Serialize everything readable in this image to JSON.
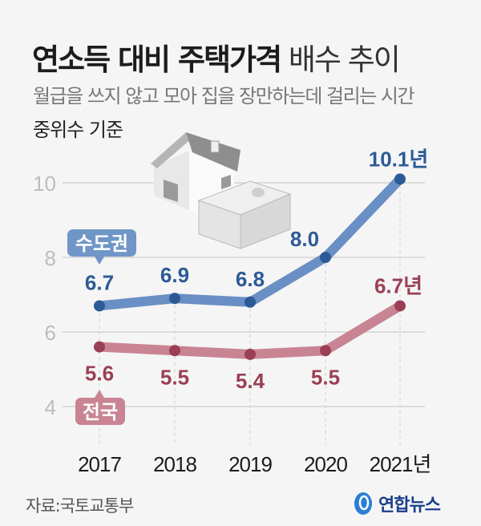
{
  "header": {
    "title_bold": "연소득 대비 주택가격",
    "title_light": "배수 추이",
    "subtitle": "월급을 쓰지 않고 모아 집을 장만하는데 걸리는 시간",
    "basis": "중위수 기준"
  },
  "footer": {
    "source": "자료:국토교통부",
    "logo_text": "연합뉴스"
  },
  "colors": {
    "capital": "#6a8fc4",
    "capital_dark": "#2c5a96",
    "national": "#c98494",
    "national_dark": "#9a3f55"
  },
  "chart_data": {
    "type": "line",
    "title": "연소득 대비 주택가격 배수 추이",
    "categories": [
      "2017",
      "2018",
      "2019",
      "2020",
      "2021년"
    ],
    "ylim": [
      4,
      10
    ],
    "yticks": [
      "4",
      "6",
      "8",
      "10"
    ],
    "grid": true,
    "series": [
      {
        "name": "수도권",
        "values": [
          6.7,
          6.9,
          6.8,
          8.0,
          10.1
        ],
        "labels": [
          "6.7",
          "6.9",
          "6.8",
          "8.0",
          "10.1년"
        ]
      },
      {
        "name": "전국",
        "values": [
          5.6,
          5.5,
          5.4,
          5.5,
          6.7
        ],
        "labels": [
          "5.6",
          "5.5",
          "5.4",
          "5.5",
          "6.7년"
        ]
      }
    ]
  }
}
